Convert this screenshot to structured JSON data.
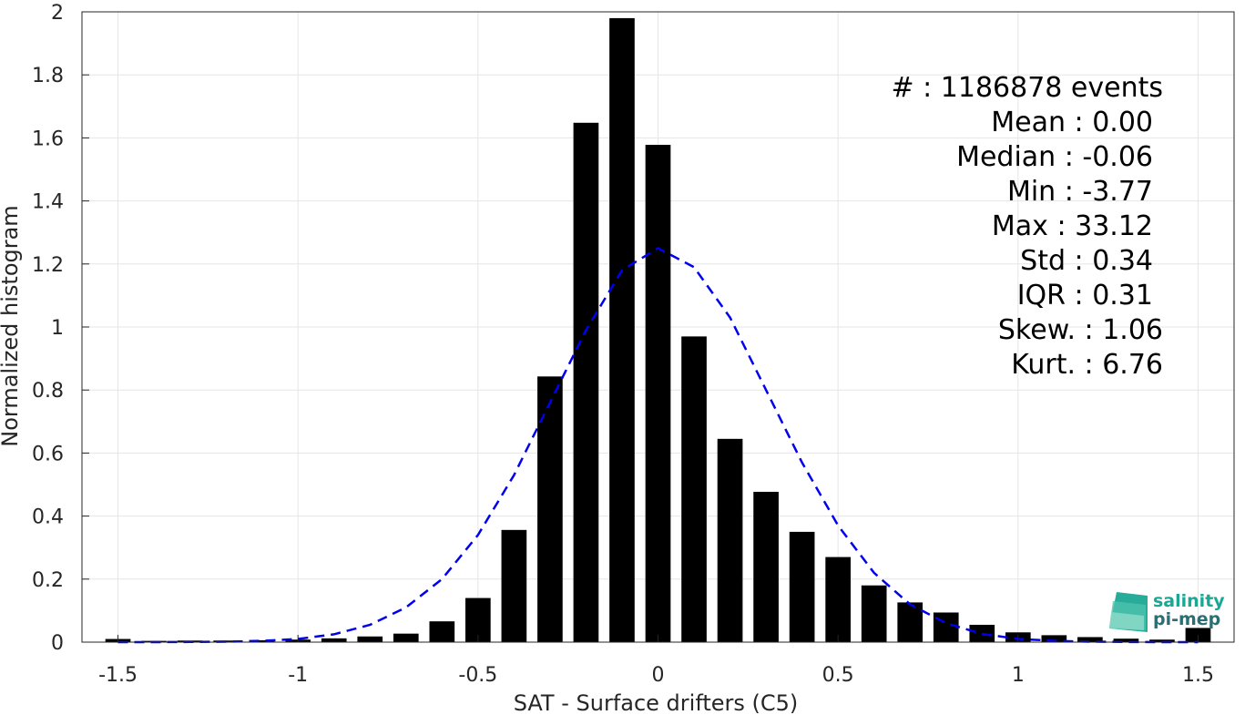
{
  "chart_data": {
    "type": "bar",
    "xlabel": "SAT - Surface drifters (C5)",
    "ylabel": "Normalized histogram",
    "xlim": [
      -1.6,
      1.6
    ],
    "ylim": [
      0,
      2
    ],
    "xticks": [
      -1.5,
      -1,
      -0.5,
      0,
      0.5,
      1,
      1.5
    ],
    "xtick_labels": [
      "-1.5",
      "-1",
      "-0.5",
      "0",
      "0.5",
      "1",
      "1.5"
    ],
    "yticks": [
      0,
      0.2,
      0.4,
      0.6,
      0.8,
      1,
      1.2,
      1.4,
      1.6,
      1.8,
      2
    ],
    "ytick_labels": [
      "0",
      "0.2",
      "0.4",
      "0.6",
      "0.8",
      "1",
      "1.2",
      "1.4",
      "1.6",
      "1.8",
      "2"
    ],
    "grid": true,
    "bar_color": "#000000",
    "series": [
      {
        "type": "bar",
        "x": [
          -1.5,
          -1.4,
          -1.3,
          -1.2,
          -1.1,
          -1.0,
          -0.9,
          -0.8,
          -0.7,
          -0.6,
          -0.5,
          -0.4,
          -0.3,
          -0.2,
          -0.1,
          0.0,
          0.1,
          0.2,
          0.3,
          0.4,
          0.5,
          0.6,
          0.7,
          0.8,
          0.9,
          1.0,
          1.1,
          1.2,
          1.3,
          1.4,
          1.5
        ],
        "values": [
          0.01,
          0.004,
          0.005,
          0.005,
          0.006,
          0.008,
          0.012,
          0.018,
          0.027,
          0.066,
          0.14,
          0.356,
          0.843,
          1.648,
          1.98,
          1.578,
          0.97,
          0.645,
          0.477,
          0.35,
          0.27,
          0.18,
          0.126,
          0.094,
          0.055,
          0.031,
          0.022,
          0.016,
          0.011,
          0.008,
          0.045
        ]
      },
      {
        "type": "line",
        "style": "dashed",
        "color": "#0000ee",
        "x": [
          -1.5,
          -1.4,
          -1.3,
          -1.2,
          -1.1,
          -1.0,
          -0.9,
          -0.8,
          -0.7,
          -0.6,
          -0.5,
          -0.4,
          -0.3,
          -0.2,
          -0.1,
          0.0,
          0.1,
          0.2,
          0.3,
          0.4,
          0.5,
          0.6,
          0.7,
          0.8,
          0.9,
          1.0,
          1.1,
          1.2,
          1.3,
          1.4,
          1.5
        ],
        "values": [
          0.0,
          0.0,
          0.0005,
          0.0015,
          0.004,
          0.01,
          0.025,
          0.055,
          0.11,
          0.2,
          0.34,
          0.53,
          0.76,
          0.99,
          1.18,
          1.25,
          1.19,
          1.03,
          0.8,
          0.57,
          0.37,
          0.22,
          0.12,
          0.06,
          0.026,
          0.01,
          0.004,
          0.0015,
          0.0005,
          0.0,
          0.0
        ]
      }
    ]
  },
  "stats": {
    "events": "#  : 1186878 events",
    "mean": "Mean : 0.00",
    "median": "Median : -0.06",
    "min": "Min : -3.77",
    "max": "Max : 33.12",
    "std": "Std : 0.34",
    "iqr": "IQR : 0.31",
    "skew": "Skew. : 1.06",
    "kurt": "Kurt. : 6.76"
  },
  "logo": {
    "line1": "salinity",
    "line2": "pi-mep",
    "color_teal": "#1aa894",
    "color_dark": "#2b6e73"
  }
}
